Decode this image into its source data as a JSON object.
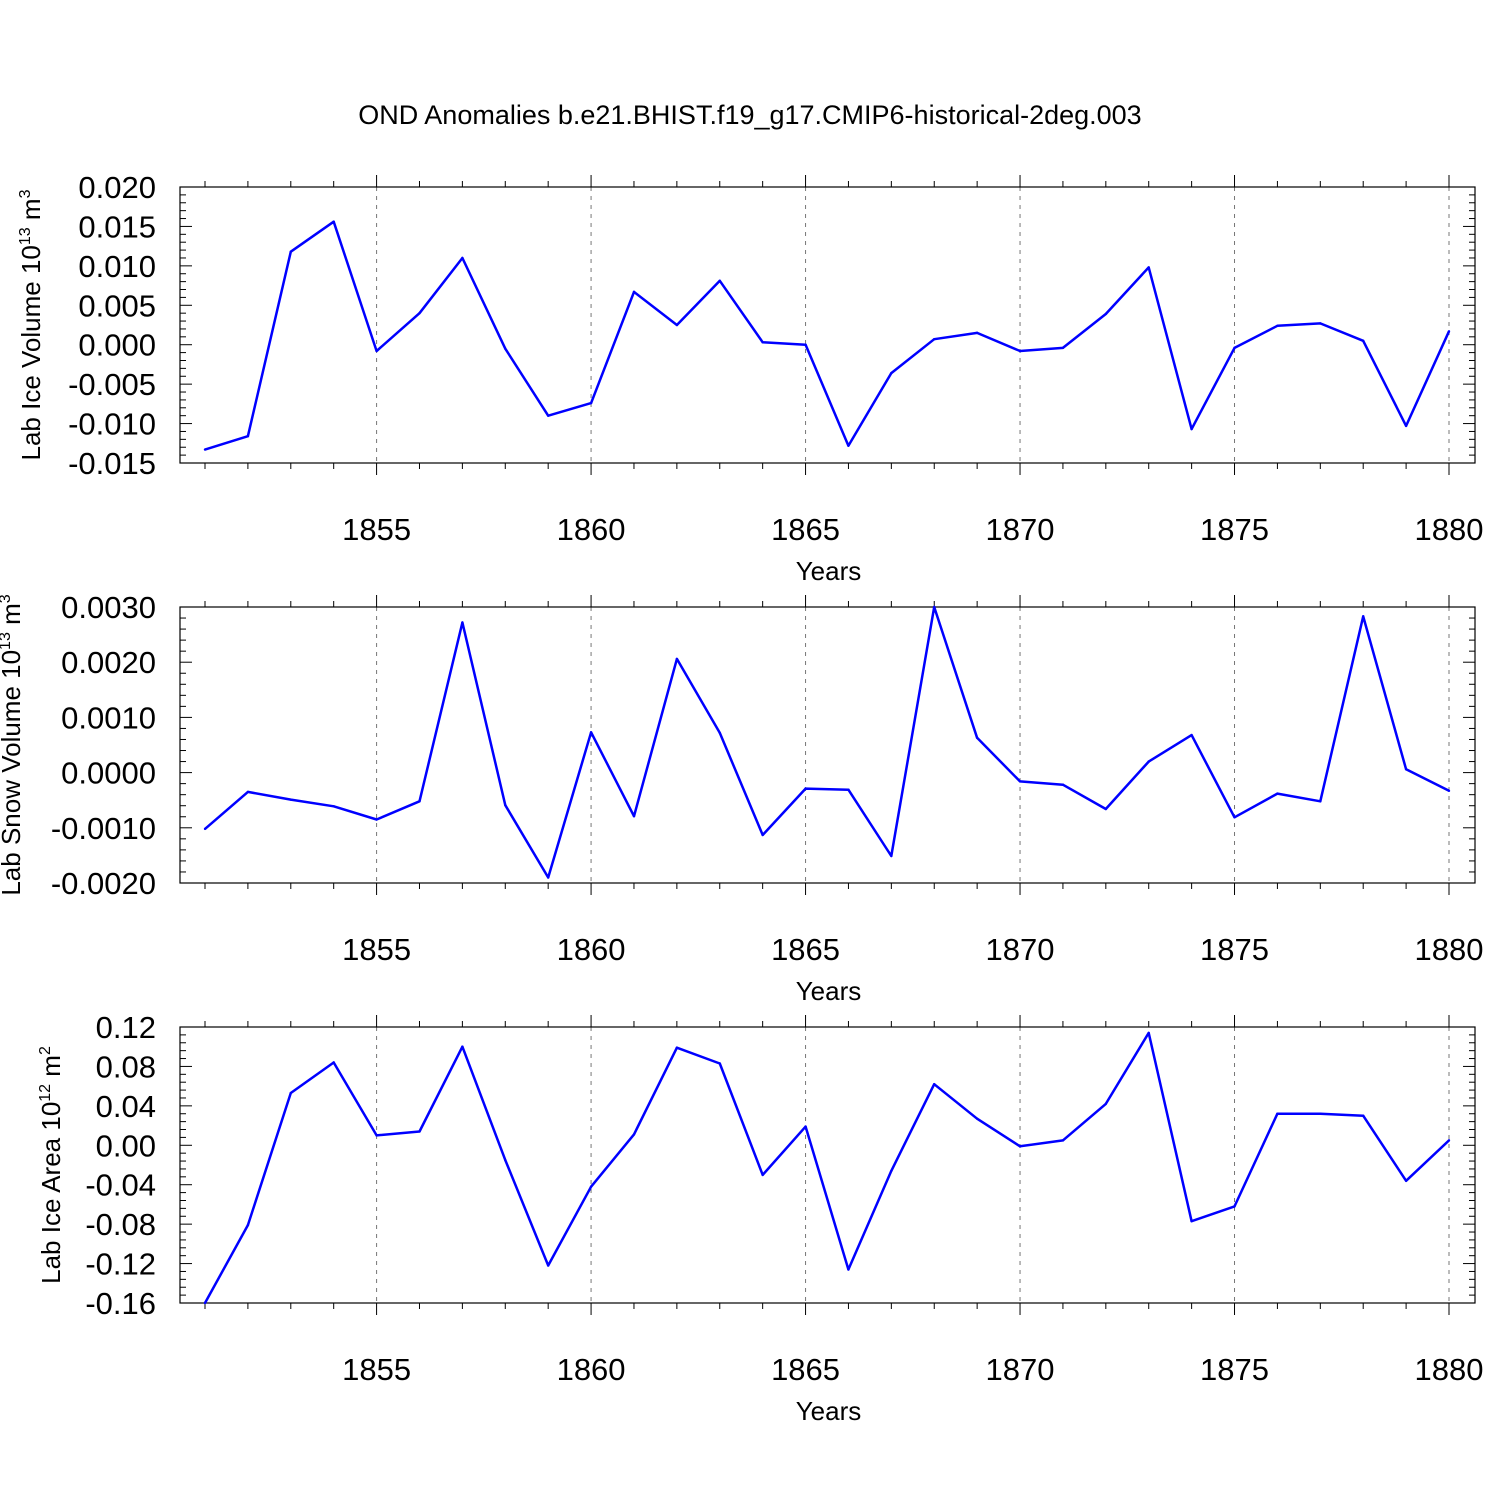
{
  "title": "OND Anomalies b.e21.BHIST.f19_g17.CMIP6-historical-2deg.003",
  "colors": {
    "series": "#0000ff",
    "grid": "#777777",
    "axes": "#000000"
  },
  "chart_data": [
    {
      "type": "line",
      "ylabel": "Lab Ice Volume 10",
      "ylabel_exponent": "13",
      "ylabel_unit": " m",
      "ylabel_unit_exponent": "3",
      "xlabel": "Years",
      "xlim": [
        1851,
        1880
      ],
      "ylim": [
        -0.015,
        0.02
      ],
      "grid": "vertical dashed at major x ticks",
      "x_tick_values": [
        1855,
        1860,
        1865,
        1870,
        1875,
        1880
      ],
      "x_tick_labels": [
        "1855",
        "1860",
        "1865",
        "1870",
        "1875",
        "1880"
      ],
      "y_tick_values": [
        -0.015,
        -0.01,
        -0.005,
        0.0,
        0.005,
        0.01,
        0.015,
        0.02
      ],
      "y_tick_labels": [
        "-0.015",
        "-0.010",
        "-0.005",
        "0.000",
        "0.005",
        "0.010",
        "0.015",
        "0.020"
      ],
      "series": [
        {
          "color": "#0000ff",
          "x": [
            1851,
            1852,
            1853,
            1854,
            1855,
            1856,
            1857,
            1858,
            1859,
            1860,
            1861,
            1862,
            1863,
            1864,
            1865,
            1866,
            1867,
            1868,
            1869,
            1870,
            1871,
            1872,
            1873,
            1874,
            1875,
            1876,
            1877,
            1878,
            1879,
            1880
          ],
          "values": [
            -0.0133,
            -0.0116,
            0.0118,
            0.0156,
            -0.0008,
            0.004,
            0.011,
            -0.0005,
            -0.009,
            -0.0074,
            0.0067,
            0.0025,
            0.0081,
            0.0003,
            0.0,
            -0.0128,
            -0.0036,
            0.0007,
            0.0015,
            -0.0008,
            -0.0004,
            0.0039,
            0.0098,
            -0.0107,
            -0.0004,
            0.0024,
            0.0027,
            0.0005,
            -0.0103,
            0.0017
          ]
        }
      ]
    },
    {
      "type": "line",
      "ylabel": "Lab Snow Volume 10",
      "ylabel_exponent": "13",
      "ylabel_unit": " m",
      "ylabel_unit_exponent": "3",
      "xlabel": "Years",
      "xlim": [
        1851,
        1880
      ],
      "ylim": [
        -0.002,
        0.003
      ],
      "grid": "vertical dashed at major x ticks",
      "x_tick_values": [
        1855,
        1860,
        1865,
        1870,
        1875,
        1880
      ],
      "x_tick_labels": [
        "1855",
        "1860",
        "1865",
        "1870",
        "1875",
        "1880"
      ],
      "y_tick_values": [
        -0.002,
        -0.001,
        0.0,
        0.001,
        0.002,
        0.003
      ],
      "y_tick_labels": [
        "-0.0020",
        "-0.0010",
        "0.0000",
        "0.0010",
        "0.0020",
        "0.0030"
      ],
      "series": [
        {
          "color": "#0000ff",
          "x": [
            1851,
            1852,
            1853,
            1854,
            1855,
            1856,
            1857,
            1858,
            1859,
            1860,
            1861,
            1862,
            1863,
            1864,
            1865,
            1866,
            1867,
            1868,
            1869,
            1870,
            1871,
            1872,
            1873,
            1874,
            1875,
            1876,
            1877,
            1878,
            1879,
            1880
          ],
          "values": [
            -0.00102,
            -0.00035,
            -0.00049,
            -0.00061,
            -0.00085,
            -0.00052,
            0.00272,
            -0.00059,
            -0.0019,
            0.00073,
            -0.00079,
            0.00206,
            0.00072,
            -0.00113,
            -0.00029,
            -0.00031,
            -0.00151,
            0.003,
            0.00063,
            -0.00016,
            -0.00022,
            -0.00066,
            0.0002,
            0.00068,
            -0.00081,
            -0.00038,
            -0.00052,
            0.00283,
            6e-05,
            -0.00033
          ]
        }
      ]
    },
    {
      "type": "line",
      "ylabel": "Lab Ice Area 10",
      "ylabel_exponent": "12",
      "ylabel_unit": " m",
      "ylabel_unit_exponent": "2",
      "xlabel": "Years",
      "xlim": [
        1851,
        1880
      ],
      "ylim": [
        -0.16,
        0.12
      ],
      "grid": "vertical dashed at major x ticks",
      "x_tick_values": [
        1855,
        1860,
        1865,
        1870,
        1875,
        1880
      ],
      "x_tick_labels": [
        "1855",
        "1860",
        "1865",
        "1870",
        "1875",
        "1880"
      ],
      "y_tick_values": [
        -0.16,
        -0.12,
        -0.08,
        -0.04,
        0.0,
        0.04,
        0.08,
        0.12
      ],
      "y_tick_labels": [
        "-0.16",
        "-0.12",
        "-0.08",
        "-0.04",
        "0.00",
        "0.04",
        "0.08",
        "0.12"
      ],
      "series": [
        {
          "color": "#0000ff",
          "x": [
            1851,
            1852,
            1853,
            1854,
            1855,
            1856,
            1857,
            1858,
            1859,
            1860,
            1861,
            1862,
            1863,
            1864,
            1865,
            1866,
            1867,
            1868,
            1869,
            1870,
            1871,
            1872,
            1873,
            1874,
            1875,
            1876,
            1877,
            1878,
            1879,
            1880
          ],
          "values": [
            -0.16,
            -0.081,
            0.053,
            0.084,
            0.01,
            0.014,
            0.1,
            -0.015,
            -0.122,
            -0.042,
            0.011,
            0.099,
            0.083,
            -0.03,
            0.019,
            -0.126,
            -0.026,
            0.062,
            0.027,
            -0.001,
            0.005,
            0.042,
            0.114,
            -0.077,
            -0.062,
            0.032,
            0.032,
            0.03,
            -0.036,
            0.005
          ]
        }
      ]
    }
  ]
}
